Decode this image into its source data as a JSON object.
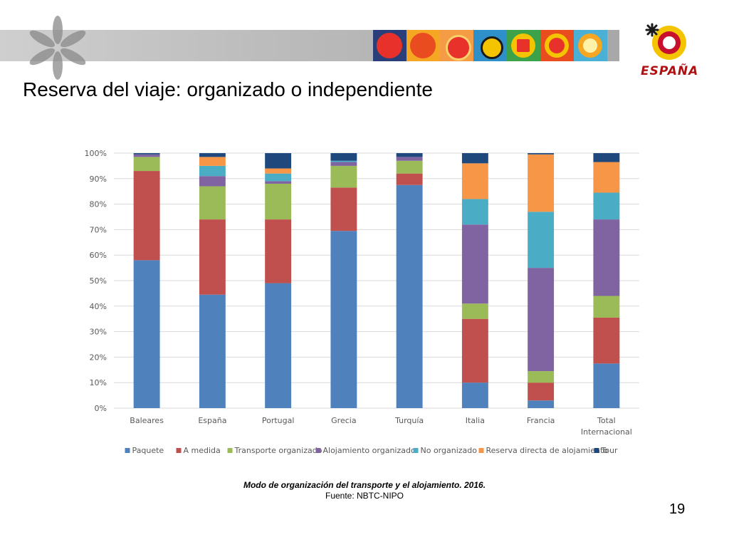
{
  "slide": {
    "title": "Reserva del viaje: organizado o independiente",
    "logo_text": "ESPAÑA",
    "caption_title": "Modo de organización del transporte y el alojamiento. 2016.",
    "caption_source": "Fuente: NBTC-NIPO",
    "page_number": "19"
  },
  "colors": {
    "banner_gray": "#bdbdbd",
    "logo_red": "#c8102e",
    "logo_yellow": "#f5c400"
  },
  "chart_data": {
    "type": "bar",
    "stacked": true,
    "percent": true,
    "categories": [
      "Baleares",
      "España",
      "Portugal",
      "Grecia",
      "Turquía",
      "Italia",
      "Francia",
      "Total Internacional"
    ],
    "category_lines": [
      [
        "Baleares"
      ],
      [
        "España"
      ],
      [
        "Portugal"
      ],
      [
        "Grecia"
      ],
      [
        "Turquía"
      ],
      [
        "Italia"
      ],
      [
        "Francia"
      ],
      [
        "Total",
        "Internacional"
      ]
    ],
    "ylim": [
      0,
      100
    ],
    "yticks": [
      0,
      10,
      20,
      30,
      40,
      50,
      60,
      70,
      80,
      90,
      100
    ],
    "ytick_labels": [
      "0%",
      "10%",
      "20%",
      "30%",
      "40%",
      "50%",
      "60%",
      "70%",
      "80%",
      "90%",
      "100%"
    ],
    "grid": true,
    "legend_position": "bottom",
    "series": [
      {
        "name": "Paquete",
        "color": "#4f81bd",
        "values": [
          58,
          44.5,
          49,
          69.5,
          87.5,
          10,
          3,
          17.5
        ]
      },
      {
        "name": "A medida",
        "color": "#c0504d",
        "values": [
          35,
          29.5,
          25,
          17,
          4.5,
          25,
          7,
          18
        ]
      },
      {
        "name": "Transporte organizado",
        "color": "#9bbb59",
        "values": [
          5.5,
          13,
          14,
          8.5,
          5,
          6,
          4.5,
          8.5
        ]
      },
      {
        "name": "Alojamiento organizado",
        "color": "#8064a2",
        "values": [
          1,
          4,
          1,
          1.5,
          1.5,
          31,
          40.5,
          30
        ]
      },
      {
        "name": "No organizado",
        "color": "#4bacc6",
        "values": [
          0,
          4,
          3,
          0.5,
          0,
          10,
          22,
          10.5
        ]
      },
      {
        "name": "Reserva directa de alojamiento",
        "color": "#f79646",
        "values": [
          0,
          3.5,
          2,
          0,
          0,
          14,
          22.5,
          12
        ]
      },
      {
        "name": "Tour",
        "color": "#1f497d",
        "values": [
          0.5,
          1.5,
          6,
          3,
          1.5,
          4,
          0.5,
          3.5
        ]
      }
    ]
  }
}
